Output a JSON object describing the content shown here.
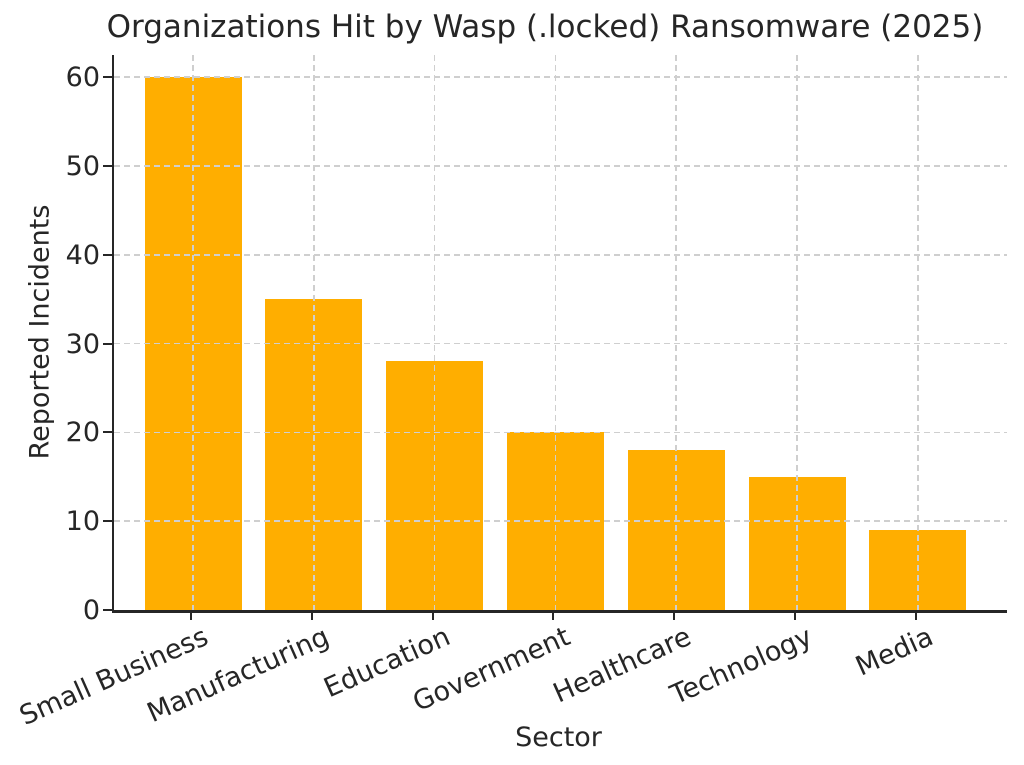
{
  "chart_data": {
    "type": "bar",
    "title": "Organizations Hit by Wasp (.locked) Ransomware (2025)",
    "xlabel": "Sector",
    "ylabel": "Reported Incidents",
    "categories": [
      "Small Business",
      "Manufacturing",
      "Education",
      "Government",
      "Healthcare",
      "Technology",
      "Media"
    ],
    "values": [
      60,
      35,
      28,
      20,
      18,
      15,
      9
    ],
    "yticks": [
      0,
      10,
      20,
      30,
      40,
      50,
      60
    ],
    "ylim": [
      0,
      62.5
    ],
    "bar_color": "#FFAE00",
    "text_color": "#262626",
    "grid_color": "#cfcfcf",
    "grid": "dashed horizontal and vertical lines, drawn above bars",
    "legend_position": "none",
    "x_tick_label_rotation_deg": -24
  }
}
